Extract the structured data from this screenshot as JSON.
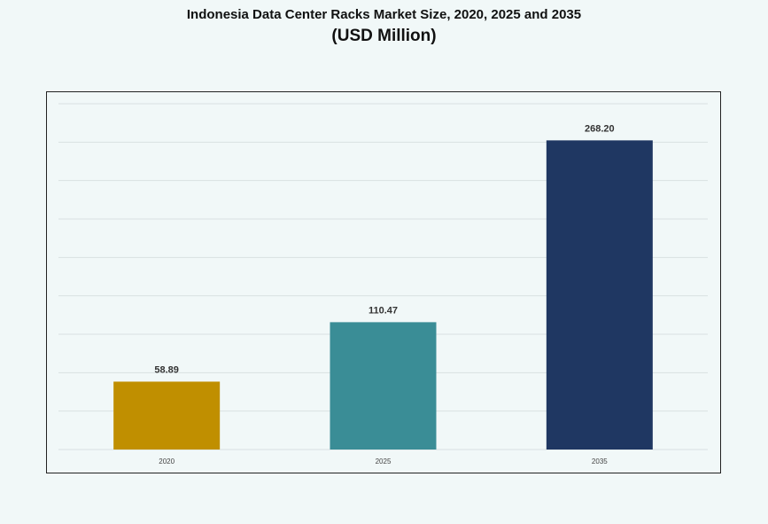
{
  "chart_data": {
    "type": "bar",
    "title": "Indonesia Data Center Racks Market Size, 2020, 2025 and 2035",
    "subtitle": "(USD Million)",
    "categories": [
      "2020",
      "2025",
      "2035"
    ],
    "values": [
      58.89,
      110.47,
      268.2
    ],
    "value_labels": [
      "58.89",
      "110.47",
      "268.20"
    ],
    "colors": [
      "#c08f00",
      "#3a8d96",
      "#1f3762"
    ],
    "ylim": [
      0,
      300
    ],
    "grid": true,
    "legend": "none",
    "xlabel": "",
    "ylabel": ""
  }
}
